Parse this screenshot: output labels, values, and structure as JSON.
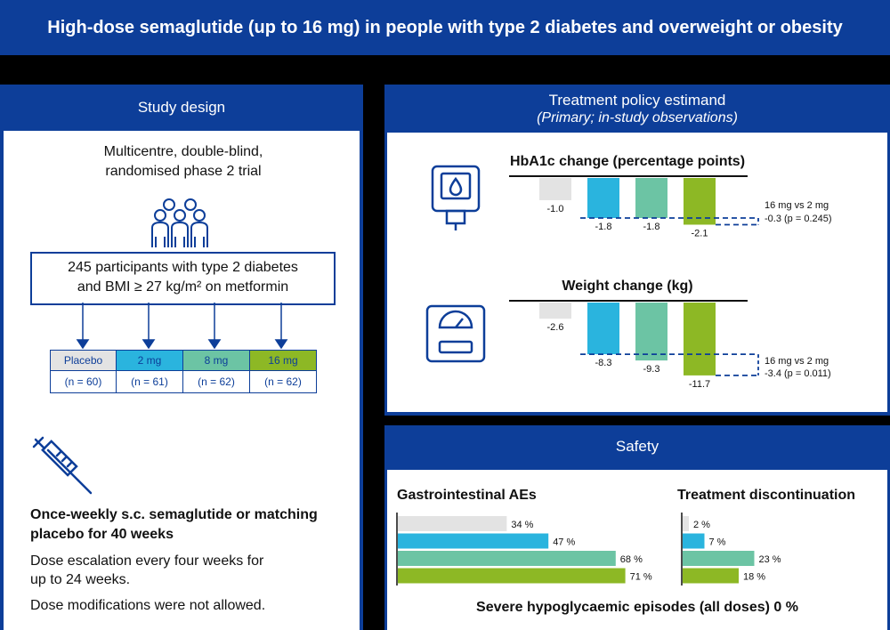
{
  "title": "High-dose semaglutide (up to 16 mg) in people with type 2 diabetes and overweight or obesity",
  "colors": {
    "navy": "#0d3e99",
    "placebo": "#e3e3e3",
    "mg2": "#2ab4de",
    "mg8": "#6cc4a4",
    "mg16": "#8db825"
  },
  "study": {
    "header": "Study design",
    "trial_line1": "Multicentre, double-blind,",
    "trial_line2": "randomised phase 2 trial",
    "participants_line1": "245 participants with type 2 diabetes",
    "participants_line2": "and BMI ≥ 27 kg/m² on metformin",
    "arms": [
      {
        "label": "Placebo",
        "n": "(n = 60)"
      },
      {
        "label": "2 mg",
        "n": "(n = 61)"
      },
      {
        "label": "8 mg",
        "n": "(n = 62)"
      },
      {
        "label": "16 mg",
        "n": "(n = 62)"
      }
    ],
    "bold_line1": "Once-weekly s.c. semaglutide or matching",
    "bold_line2": "placebo for 40 weeks",
    "dose_line1": "Dose escalation every four weeks for",
    "dose_line2": "up to 24 weeks.",
    "dose_mod": "Dose modifications were not allowed."
  },
  "estimand": {
    "header": "Treatment policy estimand",
    "subheader": "(Primary; in-study observations)"
  },
  "chart_data": [
    {
      "type": "bar",
      "title": "HbA1c change (percentage points)",
      "categories": [
        "Placebo",
        "2 mg",
        "8 mg",
        "16 mg"
      ],
      "values": [
        -1.0,
        -1.8,
        -1.8,
        -2.1
      ],
      "labels": [
        "-1.0",
        "-1.8",
        "-1.8",
        "-2.1"
      ],
      "comparison_line1": "16 mg vs 2 mg",
      "comparison_line2": "-0.3 (p = 0.245)"
    },
    {
      "type": "bar",
      "title": "Weight change (kg)",
      "categories": [
        "Placebo",
        "2 mg",
        "8 mg",
        "16 mg"
      ],
      "values": [
        -2.6,
        -8.3,
        -9.3,
        -11.7
      ],
      "labels": [
        "-2.6",
        "-8.3",
        "-9.3",
        "-11.7"
      ],
      "comparison_line1": "16 mg vs 2 mg",
      "comparison_line2": "-3.4 (p = 0.011)"
    },
    {
      "type": "bar",
      "orientation": "horizontal",
      "title": "Gastrointestinal AEs",
      "categories": [
        "Placebo",
        "2 mg",
        "8 mg",
        "16 mg"
      ],
      "values": [
        34,
        47,
        68,
        71
      ],
      "labels": [
        "34 %",
        "47 %",
        "68 %",
        "71 %"
      ]
    },
    {
      "type": "bar",
      "orientation": "horizontal",
      "title": "Treatment discontinuation",
      "categories": [
        "Placebo",
        "2 mg",
        "8 mg",
        "16 mg"
      ],
      "values": [
        2,
        7,
        23,
        18
      ],
      "labels": [
        "2 %",
        "7 %",
        "23 %",
        "18 %"
      ]
    }
  ],
  "safety": {
    "header": "Safety",
    "footer": "Severe hypoglycaemic episodes (all doses) 0 %"
  }
}
